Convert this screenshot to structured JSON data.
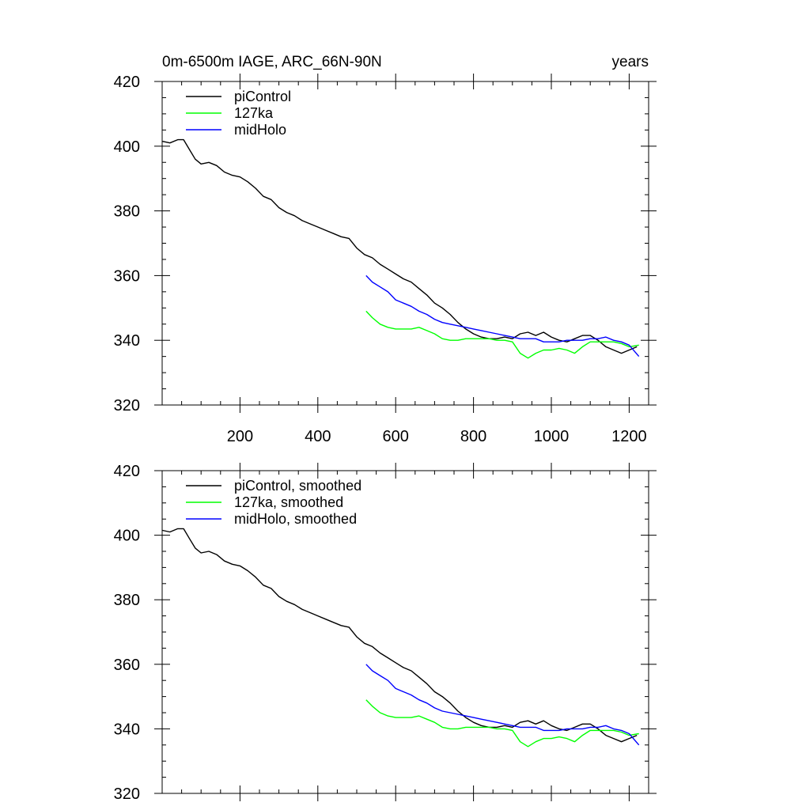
{
  "chart_data": [
    {
      "type": "line",
      "title_left": "0m-6500m IAGE, ARC_66N-90N",
      "title_right": "years",
      "xlim": [
        0,
        1250
      ],
      "ylim": [
        320,
        420
      ],
      "x_ticks": [
        200,
        400,
        600,
        800,
        1000,
        1200
      ],
      "x_tick_labels": [
        "200",
        "400",
        "600",
        "800",
        "1000",
        "1200"
      ],
      "y_ticks": [
        320,
        340,
        360,
        380,
        400,
        420
      ],
      "y_tick_labels": [
        "320",
        "340",
        "360",
        "380",
        "400",
        "420"
      ],
      "legend_position": "top-left",
      "series": [
        {
          "name": "piControl",
          "color": "#000000",
          "x": [
            1,
            20,
            40,
            55,
            70,
            85,
            100,
            120,
            140,
            160,
            180,
            200,
            220,
            240,
            260,
            280,
            300,
            320,
            340,
            360,
            380,
            400,
            420,
            440,
            460,
            480,
            500,
            520,
            540,
            560,
            580,
            600,
            620,
            640,
            660,
            680,
            700,
            720,
            740,
            760,
            780,
            800,
            820,
            840,
            860,
            880,
            900,
            920,
            940,
            960,
            980,
            1000,
            1020,
            1040,
            1060,
            1080,
            1100,
            1120,
            1140,
            1160,
            1180,
            1200,
            1220
          ],
          "values": [
            401.5,
            401,
            402,
            402,
            399,
            396,
            394.5,
            395,
            394,
            392,
            391,
            390.5,
            389,
            387,
            384.5,
            383.5,
            381,
            379.5,
            378.5,
            377,
            376,
            375,
            374,
            373,
            372,
            371.5,
            368.5,
            366.5,
            365.5,
            363.5,
            362,
            360.5,
            359,
            358,
            356,
            354,
            351.5,
            350,
            348,
            345.5,
            343.5,
            342,
            341,
            340.5,
            340.5,
            341,
            340.5,
            342,
            342.5,
            341.5,
            342.5,
            341,
            340,
            339.5,
            340.5,
            341.5,
            341.5,
            340,
            338,
            337,
            336,
            337,
            338
          ]
        },
        {
          "name": "127ka",
          "color": "#00ff00",
          "x": [
            524,
            540,
            560,
            580,
            600,
            620,
            640,
            660,
            680,
            700,
            720,
            740,
            760,
            780,
            800,
            820,
            840,
            860,
            880,
            900,
            920,
            940,
            960,
            980,
            1000,
            1020,
            1040,
            1060,
            1080,
            1100,
            1120,
            1140,
            1160,
            1180,
            1200,
            1225
          ],
          "values": [
            349,
            347,
            345,
            344,
            343.5,
            343.5,
            343.5,
            344,
            343,
            342,
            340.5,
            340,
            340,
            340.5,
            340.5,
            340.5,
            340.5,
            340,
            340,
            339.5,
            336,
            334.5,
            336,
            337,
            337,
            337.5,
            337,
            336,
            338,
            339.5,
            339.5,
            339.5,
            339.5,
            339,
            338,
            338.5
          ]
        },
        {
          "name": "midHolo",
          "color": "#0000ff",
          "x": [
            524,
            540,
            560,
            580,
            600,
            620,
            640,
            660,
            680,
            700,
            720,
            740,
            760,
            780,
            800,
            820,
            840,
            860,
            880,
            900,
            920,
            940,
            960,
            980,
            1000,
            1020,
            1040,
            1060,
            1080,
            1100,
            1120,
            1140,
            1160,
            1180,
            1200,
            1225
          ],
          "values": [
            360,
            358,
            356.5,
            355,
            352.5,
            351.5,
            350.5,
            349,
            348,
            346.5,
            345.5,
            345,
            344.5,
            344,
            343.5,
            343,
            342.5,
            342,
            341.5,
            341,
            340.5,
            340.5,
            340.5,
            339.5,
            339.5,
            339.5,
            340,
            340,
            340,
            340.5,
            340.5,
            341,
            340,
            339.5,
            338.5,
            335
          ]
        }
      ]
    },
    {
      "type": "line",
      "title_left": "",
      "title_right": "",
      "xlim": [
        0,
        1250
      ],
      "ylim": [
        320,
        420
      ],
      "x_ticks": [
        200,
        400,
        600,
        800,
        1000,
        1200
      ],
      "x_tick_labels": [],
      "y_ticks": [
        320,
        340,
        360,
        380,
        400,
        420
      ],
      "y_tick_labels": [
        "320",
        "340",
        "360",
        "380",
        "400",
        "420"
      ],
      "legend_position": "top-left",
      "series": [
        {
          "name": "piControl, smoothed",
          "color": "#000000",
          "x": [
            1,
            20,
            40,
            55,
            70,
            85,
            100,
            120,
            140,
            160,
            180,
            200,
            220,
            240,
            260,
            280,
            300,
            320,
            340,
            360,
            380,
            400,
            420,
            440,
            460,
            480,
            500,
            520,
            540,
            560,
            580,
            600,
            620,
            640,
            660,
            680,
            700,
            720,
            740,
            760,
            780,
            800,
            820,
            840,
            860,
            880,
            900,
            920,
            940,
            960,
            980,
            1000,
            1020,
            1040,
            1060,
            1080,
            1100,
            1120,
            1140,
            1160,
            1180,
            1200,
            1220
          ],
          "values": [
            401.5,
            401,
            402,
            402,
            399,
            396,
            394.5,
            395,
            394,
            392,
            391,
            390.5,
            389,
            387,
            384.5,
            383.5,
            381,
            379.5,
            378.5,
            377,
            376,
            375,
            374,
            373,
            372,
            371.5,
            368.5,
            366.5,
            365.5,
            363.5,
            362,
            360.5,
            359,
            358,
            356,
            354,
            351.5,
            350,
            348,
            345.5,
            343.5,
            342,
            341,
            340.5,
            340.5,
            341,
            340.5,
            342,
            342.5,
            341.5,
            342.5,
            341,
            340,
            339.5,
            340.5,
            341.5,
            341.5,
            340,
            338,
            337,
            336,
            337,
            338
          ]
        },
        {
          "name": "127ka, smoothed",
          "color": "#00ff00",
          "x": [
            524,
            540,
            560,
            580,
            600,
            620,
            640,
            660,
            680,
            700,
            720,
            740,
            760,
            780,
            800,
            820,
            840,
            860,
            880,
            900,
            920,
            940,
            960,
            980,
            1000,
            1020,
            1040,
            1060,
            1080,
            1100,
            1120,
            1140,
            1160,
            1180,
            1200,
            1225
          ],
          "values": [
            349,
            347,
            345,
            344,
            343.5,
            343.5,
            343.5,
            344,
            343,
            342,
            340.5,
            340,
            340,
            340.5,
            340.5,
            340.5,
            340.5,
            340,
            340,
            339.5,
            336,
            334.5,
            336,
            337,
            337,
            337.5,
            337,
            336,
            338,
            339.5,
            339.5,
            339.5,
            339.5,
            339,
            338,
            338.5
          ]
        },
        {
          "name": "midHolo, smoothed",
          "color": "#0000ff",
          "x": [
            524,
            540,
            560,
            580,
            600,
            620,
            640,
            660,
            680,
            700,
            720,
            740,
            760,
            780,
            800,
            820,
            840,
            860,
            880,
            900,
            920,
            940,
            960,
            980,
            1000,
            1020,
            1040,
            1060,
            1080,
            1100,
            1120,
            1140,
            1160,
            1180,
            1200,
            1225
          ],
          "values": [
            360,
            358,
            356.5,
            355,
            352.5,
            351.5,
            350.5,
            349,
            348,
            346.5,
            345.5,
            345,
            344.5,
            344,
            343.5,
            343,
            342.5,
            342,
            341.5,
            341,
            340.5,
            340.5,
            340.5,
            339.5,
            339.5,
            339.5,
            340,
            340,
            340,
            340.5,
            340.5,
            341,
            340,
            339.5,
            338.5,
            335
          ]
        }
      ]
    }
  ]
}
